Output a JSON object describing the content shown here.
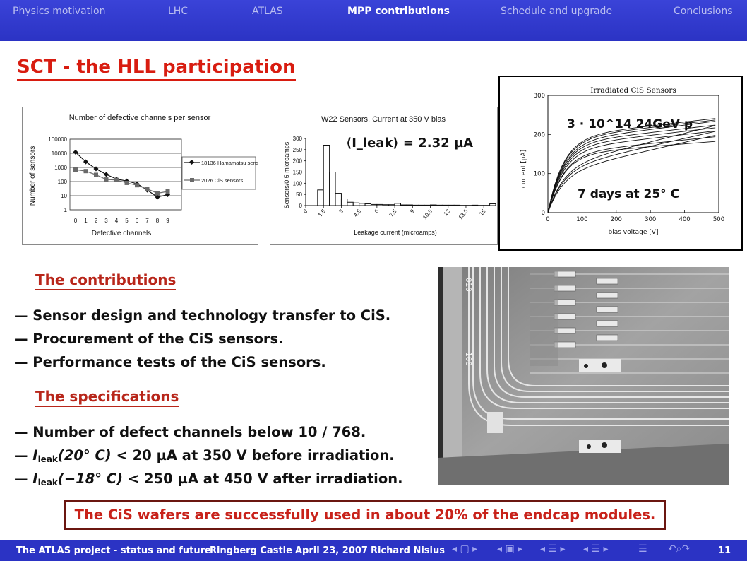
{
  "nav": [
    {
      "label": "Physics motivation",
      "active": false
    },
    {
      "label": "LHC",
      "active": false
    },
    {
      "label": "ATLAS",
      "active": false
    },
    {
      "label": "MPP contributions",
      "active": true
    },
    {
      "label": "Schedule and upgrade",
      "active": false
    },
    {
      "label": "Conclusions",
      "active": false
    }
  ],
  "title": "SCT - the HLL participation",
  "charts": [
    {
      "type": "line",
      "title": "Number of defective channels per sensor",
      "xlabel": "Defective channels",
      "ylabel": "Number of sensors",
      "yscale": "log",
      "ytick_labels": [
        "100000",
        "10000",
        "1000",
        "100",
        "10",
        "1"
      ],
      "x": [
        0,
        1,
        2,
        3,
        4,
        5,
        6,
        7,
        8,
        9
      ],
      "series": [
        {
          "name": "18136 Hamamatsu sensors",
          "color": "#111111",
          "marker": "diamond",
          "values": [
            12000,
            2500,
            800,
            320,
            150,
            110,
            70,
            25,
            8,
            12
          ]
        },
        {
          "name": "2026 CiS sensors",
          "color": "#6a6a6a",
          "marker": "square",
          "values": [
            700,
            550,
            300,
            140,
            130,
            80,
            55,
            30,
            15,
            20
          ]
        }
      ],
      "legend": "right"
    },
    {
      "type": "bar",
      "title": "W22 Sensors, Current at 350 V bias",
      "annotation": "⟨I_leak⟩ = 2.32 µA",
      "xlabel": "Leakage current (microamps)",
      "ylabel": "Sensors/0.5 microamps",
      "xtick_labels": [
        "0",
        "1.5",
        "3",
        "4.5",
        "6",
        "7.5",
        "9",
        "10.5",
        "12",
        "13.5",
        "15"
      ],
      "ytick_labels": [
        "300",
        "250",
        "200",
        "150",
        "100",
        "50",
        "0"
      ],
      "ylim": [
        0,
        300
      ],
      "bin_width": 0.5,
      "values": [
        0,
        0,
        70,
        270,
        150,
        55,
        30,
        15,
        12,
        10,
        8,
        5,
        5,
        4,
        4,
        10,
        3,
        3,
        2,
        2,
        2,
        3,
        2,
        2,
        2,
        2,
        1,
        1,
        2,
        1,
        1,
        8
      ]
    },
    {
      "type": "line",
      "title": "Irradiated CiS Sensors",
      "annotation_top": "3 · 10^14 24GeV p",
      "annotation_bottom": "7 days at 25° C",
      "xlabel": "bias voltage [V]",
      "ylabel": "current [µA]",
      "xlim": [
        0,
        500
      ],
      "ylim": [
        0,
        300
      ],
      "xtick_labels": [
        "0",
        "100",
        "200",
        "300",
        "400",
        "500"
      ],
      "ytick_labels": [
        "300",
        "200",
        "100",
        "0"
      ],
      "curves": [
        {
          "i_plateau": 148,
          "slope": 0.07
        },
        {
          "i_plateau": 150,
          "slope": 0.09
        },
        {
          "i_plateau": 160,
          "slope": 0.1
        },
        {
          "i_plateau": 168,
          "slope": 0.1
        },
        {
          "i_plateau": 175,
          "slope": 0.1
        },
        {
          "i_plateau": 180,
          "slope": 0.11
        },
        {
          "i_plateau": 188,
          "slope": 0.1
        },
        {
          "i_plateau": 192,
          "slope": 0.1
        },
        {
          "i_plateau": 100,
          "slope": 0.2
        },
        {
          "i_plateau": 110,
          "slope": 0.2
        },
        {
          "i_plateau": 115,
          "slope": 0.22
        }
      ]
    }
  ],
  "contributions": {
    "heading": "The contributions",
    "items": [
      "— Sensor design and technology transfer to CiS.",
      "— Procurement of the CiS sensors.",
      "— Performance tests of the CiS sensors."
    ]
  },
  "specifications": {
    "heading": "The specifications",
    "item1": "— Number of defect channels below 10 / 768.",
    "item2": {
      "dash": "— ",
      "sym": "I",
      "sub": "leak",
      "cond": "(20° C)",
      "lt": " < ",
      "rest": "20 µA at 350 V before irradiation."
    },
    "item3": {
      "dash": "— ",
      "sym": "I",
      "sub": "leak",
      "cond": "(−18° C)",
      "lt": " < ",
      "rest": "250 µA at 450 V after irradiation."
    }
  },
  "photo_labels": [
    "010",
    "100"
  ],
  "conclusion": "The CiS wafers are successfully used in about 20% of the endcap modules.",
  "footer": {
    "project": "The ATLAS project - status and future",
    "venue": "Ringberg Castle",
    "date": "April 23, 2007",
    "author": "Richard Nisius",
    "page": "11"
  },
  "colors": {
    "nav_bg": "#2b33c4",
    "title": "#d81c10",
    "heading": "#b8261a",
    "conclusion": "#c8221a"
  }
}
